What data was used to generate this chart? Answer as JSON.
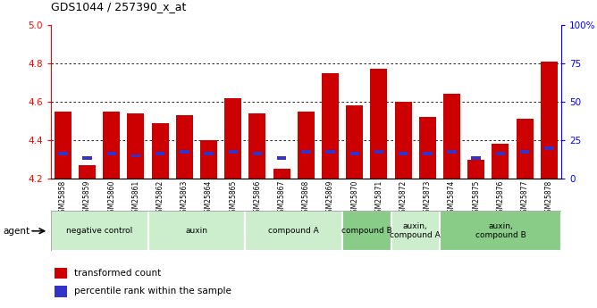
{
  "title": "GDS1044 / 257390_x_at",
  "samples": [
    "GSM25858",
    "GSM25859",
    "GSM25860",
    "GSM25861",
    "GSM25862",
    "GSM25863",
    "GSM25864",
    "GSM25865",
    "GSM25866",
    "GSM25867",
    "GSM25868",
    "GSM25869",
    "GSM25870",
    "GSM25871",
    "GSM25872",
    "GSM25873",
    "GSM25874",
    "GSM25875",
    "GSM25876",
    "GSM25877",
    "GSM25878"
  ],
  "bar_heights": [
    4.55,
    4.27,
    4.55,
    4.54,
    4.49,
    4.53,
    4.4,
    4.62,
    4.54,
    4.25,
    4.55,
    4.75,
    4.58,
    4.77,
    4.6,
    4.52,
    4.64,
    4.3,
    4.38,
    4.51,
    4.81
  ],
  "blue_positions": [
    4.32,
    4.3,
    4.32,
    4.31,
    4.32,
    4.33,
    4.32,
    4.33,
    4.32,
    4.3,
    4.33,
    4.33,
    4.32,
    4.33,
    4.32,
    4.32,
    4.33,
    4.3,
    4.32,
    4.33,
    4.35
  ],
  "y_min": 4.2,
  "y_max": 5.0,
  "y_ticks_left": [
    4.2,
    4.4,
    4.6,
    4.8,
    5.0
  ],
  "y_ticks_right": [
    0,
    25,
    50,
    75,
    100
  ],
  "right_tick_labels": [
    "0",
    "25",
    "50",
    "75",
    "100%"
  ],
  "grid_lines": [
    4.4,
    4.6,
    4.8
  ],
  "bar_color": "#cc0000",
  "blue_color": "#3333cc",
  "groups": [
    {
      "label": "negative control",
      "start": 0,
      "end": 4,
      "color": "#cceecc"
    },
    {
      "label": "auxin",
      "start": 4,
      "end": 8,
      "color": "#cceecc"
    },
    {
      "label": "compound A",
      "start": 8,
      "end": 12,
      "color": "#cceecc"
    },
    {
      "label": "compound B",
      "start": 12,
      "end": 14,
      "color": "#88cc88"
    },
    {
      "label": "auxin,\ncompound A",
      "start": 14,
      "end": 16,
      "color": "#cceecc"
    },
    {
      "label": "auxin,\ncompound B",
      "start": 16,
      "end": 21,
      "color": "#88cc88"
    }
  ],
  "legend_items": [
    {
      "label": "transformed count",
      "color": "#cc0000"
    },
    {
      "label": "percentile rank within the sample",
      "color": "#3333cc"
    }
  ],
  "bg_color": "#ffffff"
}
